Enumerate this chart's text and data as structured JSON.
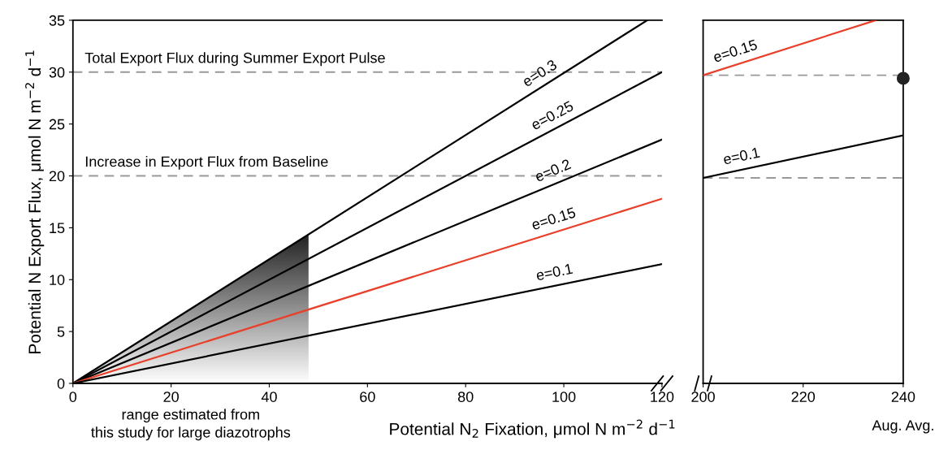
{
  "chart_data": [
    {
      "type": "line",
      "xlabel": "Potential N$_{2}$ Fixation, μmol N m$^{−2}$ d$^{−1}$",
      "ylabel": "Potential N Export Flux, μmol N m$^{−2}$ d$^{−1}$",
      "xlim": [
        0,
        120
      ],
      "ylim": [
        0,
        35
      ],
      "xticks": [
        0,
        20,
        40,
        60,
        80,
        100,
        120
      ],
      "yticks": [
        0,
        5,
        10,
        15,
        20,
        25,
        30,
        35
      ],
      "grid": false,
      "series": [
        {
          "name": "e=0.3",
          "color": "#000000",
          "x": [
            0,
            117
          ],
          "values": [
            0,
            35
          ]
        },
        {
          "name": "e=0.25",
          "color": "#000000",
          "x": [
            0,
            120
          ],
          "values": [
            0,
            30
          ]
        },
        {
          "name": "e=0.2",
          "color": "#000000",
          "x": [
            0,
            120
          ],
          "values": [
            0,
            23.5
          ]
        },
        {
          "name": "e=0.15",
          "color": "#e8402a",
          "x": [
            0,
            120
          ],
          "values": [
            0,
            17.8
          ]
        },
        {
          "name": "e=0.1",
          "color": "#000000",
          "x": [
            0,
            120
          ],
          "values": [
            0,
            11.5
          ]
        }
      ],
      "ref_lines": [
        {
          "axis": "y",
          "value": 30,
          "label": "Total Export Flux during Summer Export Pulse",
          "color": "#999999",
          "line_style": "dashed"
        },
        {
          "axis": "y",
          "value": 20,
          "label": "Increase in Export Flux from Baseline",
          "color": "#999999",
          "line_style": "dashed"
        }
      ],
      "bands": [
        {
          "axis": "x",
          "from": 0,
          "to": 48,
          "label": "range estimated from\nthis study for large diazotrophs",
          "color": "#222222"
        }
      ]
    },
    {
      "type": "line",
      "xlim": [
        200,
        240
      ],
      "ylim": [
        0,
        35
      ],
      "xticks": [
        200,
        220,
        240
      ],
      "tick_labels": "x",
      "grid": false,
      "series": [
        {
          "name": "e=0.15",
          "color": "#e8402a",
          "x": [
            200,
            234.5
          ],
          "values": [
            29.7,
            35
          ]
        },
        {
          "name": "e=0.1",
          "color": "#000000",
          "x": [
            200,
            240
          ],
          "values": [
            19.8,
            23.9
          ]
        },
        {
          "type": "scatter",
          "color": "#222222",
          "marker": "circle",
          "x": [
            240
          ],
          "values": [
            29.4
          ]
        }
      ],
      "ref_lines": [
        {
          "axis": "y",
          "value": 29.7,
          "color": "#999999",
          "line_style": "dashed"
        },
        {
          "axis": "y",
          "value": 19.8,
          "color": "#999999",
          "line_style": "dashed"
        }
      ],
      "annotations": [
        "Aug. Avg."
      ]
    }
  ]
}
